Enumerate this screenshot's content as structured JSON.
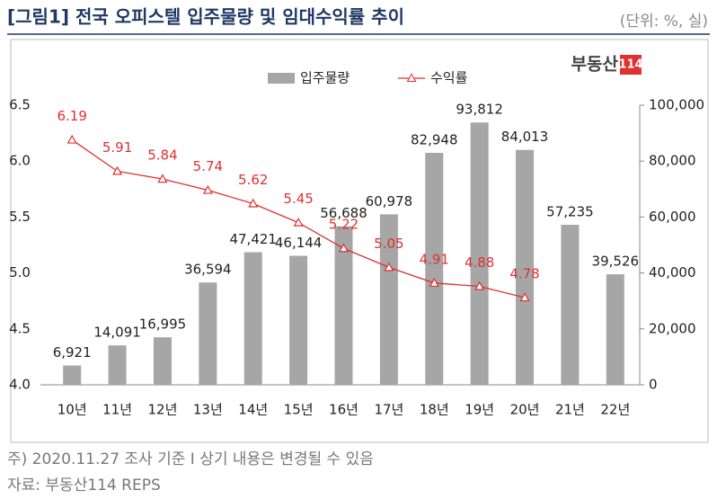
{
  "chart_data": {
    "type": "bar",
    "title": "[그림1] 전국 오피스텔 입주물량 및 임대수익률 추이",
    "subtitle": "(단위: %, 실)",
    "logo": {
      "text": "부동산",
      "badge": "114"
    },
    "categories": [
      "10년",
      "11년",
      "12년",
      "13년",
      "14년",
      "15년",
      "16년",
      "17년",
      "18년",
      "19년",
      "20년",
      "21년",
      "22년"
    ],
    "series": [
      {
        "name": "입주물량",
        "type": "bar",
        "axis": "y2",
        "color": "#a6a6a6",
        "values": [
          6921,
          14091,
          16995,
          36594,
          47421,
          46144,
          56688,
          60978,
          82948,
          93812,
          84013,
          57235,
          39526
        ],
        "value_labels": [
          "6,921",
          "14,091",
          "16,995",
          "36,594",
          "47,421",
          "46,144",
          "56,688",
          "60,978",
          "82,948",
          "93,812",
          "84,013",
          "57,235",
          "39,526"
        ]
      },
      {
        "name": "수익률",
        "type": "line",
        "axis": "y",
        "color": "#e03030",
        "values": [
          6.19,
          5.91,
          5.84,
          5.74,
          5.62,
          5.45,
          5.22,
          5.05,
          4.91,
          4.88,
          4.78,
          null,
          null
        ]
      }
    ],
    "ylim": [
      4.0,
      6.5
    ],
    "yticks": [
      {
        "value": 4.0,
        "label": "4.0"
      },
      4.5,
      {
        "value": 5.0,
        "label": "5.0"
      },
      5.5,
      {
        "value": 6.0,
        "label": "6.0"
      },
      6.5
    ],
    "y2lim": [
      0,
      100000
    ],
    "y2ticks": [
      0,
      {
        "value": 20000,
        "label": "20,000"
      },
      {
        "value": 40000,
        "label": "40,000"
      },
      {
        "value": 60000,
        "label": "60,000"
      },
      {
        "value": 80000,
        "label": "80,000"
      },
      {
        "value": 100000,
        "label": "100,000"
      }
    ],
    "legend": "top",
    "notes": [
      "주) 2020.11.27 조사 기준 I 상기 내용은 변경될 수 있음",
      "자료: 부동산114 REPS"
    ]
  }
}
